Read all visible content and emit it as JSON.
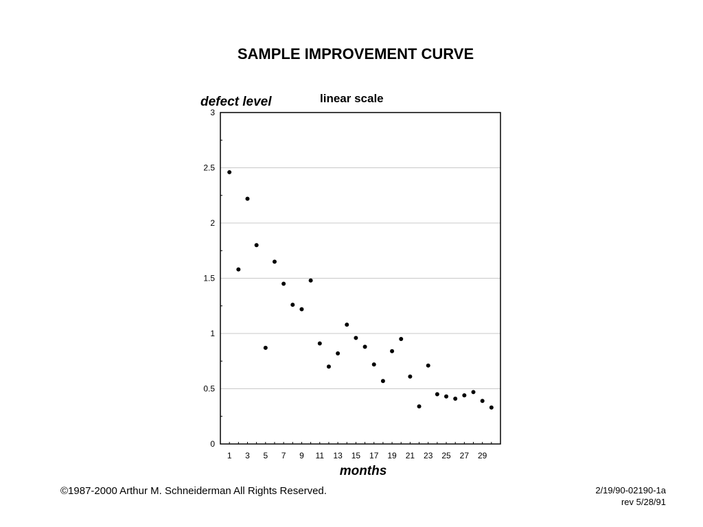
{
  "chart_data": {
    "type": "scatter",
    "title": "SAMPLE IMPROVEMENT CURVE",
    "subtitle": "linear scale",
    "xlabel": "months",
    "ylabel": "defect level",
    "xlim": [
      0,
      31
    ],
    "ylim": [
      0,
      3
    ],
    "y_ticks": [
      0,
      0.5,
      1,
      1.5,
      2,
      2.5,
      3
    ],
    "y_tick_labels": [
      "0",
      "0.5",
      "1",
      "1.5",
      "2",
      "2.5",
      "3"
    ],
    "x_ticks": [
      1,
      3,
      5,
      7,
      9,
      11,
      13,
      15,
      17,
      19,
      21,
      23,
      25,
      27,
      29
    ],
    "x_tick_labels": [
      "1",
      "3",
      "5",
      "7",
      "9",
      "11",
      "13",
      "15",
      "17",
      "19",
      "21",
      "23",
      "25",
      "27",
      "29"
    ],
    "grid": "horizontal",
    "marker_color": "#000000",
    "x": [
      1,
      2,
      3,
      4,
      5,
      6,
      7,
      8,
      9,
      10,
      11,
      12,
      13,
      14,
      15,
      16,
      17,
      18,
      19,
      20,
      21,
      22,
      23,
      24,
      25,
      26,
      27,
      28,
      29,
      30
    ],
    "y": [
      2.46,
      1.58,
      2.22,
      1.8,
      0.87,
      1.65,
      1.45,
      1.26,
      1.22,
      1.48,
      0.91,
      0.7,
      0.82,
      1.08,
      0.96,
      0.88,
      0.72,
      0.57,
      0.84,
      0.95,
      0.61,
      0.34,
      0.71,
      0.45,
      0.43,
      0.41,
      0.44,
      0.47,
      0.39,
      0.33
    ]
  },
  "footer": {
    "copyright": "©1987-2000 Arthur M. Schneiderman  All Rights Reserved.",
    "ref_line1": "2/19/90-02190-1a",
    "ref_line2": "rev 5/28/91"
  }
}
